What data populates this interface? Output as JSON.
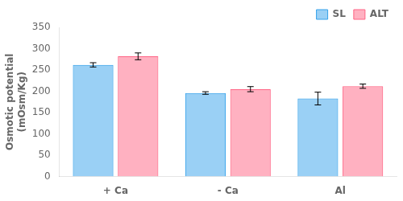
{
  "chart_data": {
    "type": "bar",
    "categories": [
      "+ Ca",
      "- Ca",
      "Al"
    ],
    "series": [
      {
        "name": "SL",
        "values": [
          262,
          196,
          183
        ],
        "errors": [
          5,
          3,
          15
        ]
      },
      {
        "name": "ALT",
        "values": [
          282,
          205,
          212
        ],
        "errors": [
          8,
          6,
          5
        ]
      }
    ],
    "ylabel": "Osmotic potential\n(mOsm/Kg)",
    "ylim": [
      0,
      350
    ],
    "yticks": [
      0,
      50,
      100,
      150,
      200,
      250,
      300,
      350
    ],
    "grid": false,
    "legend": "upper right"
  }
}
